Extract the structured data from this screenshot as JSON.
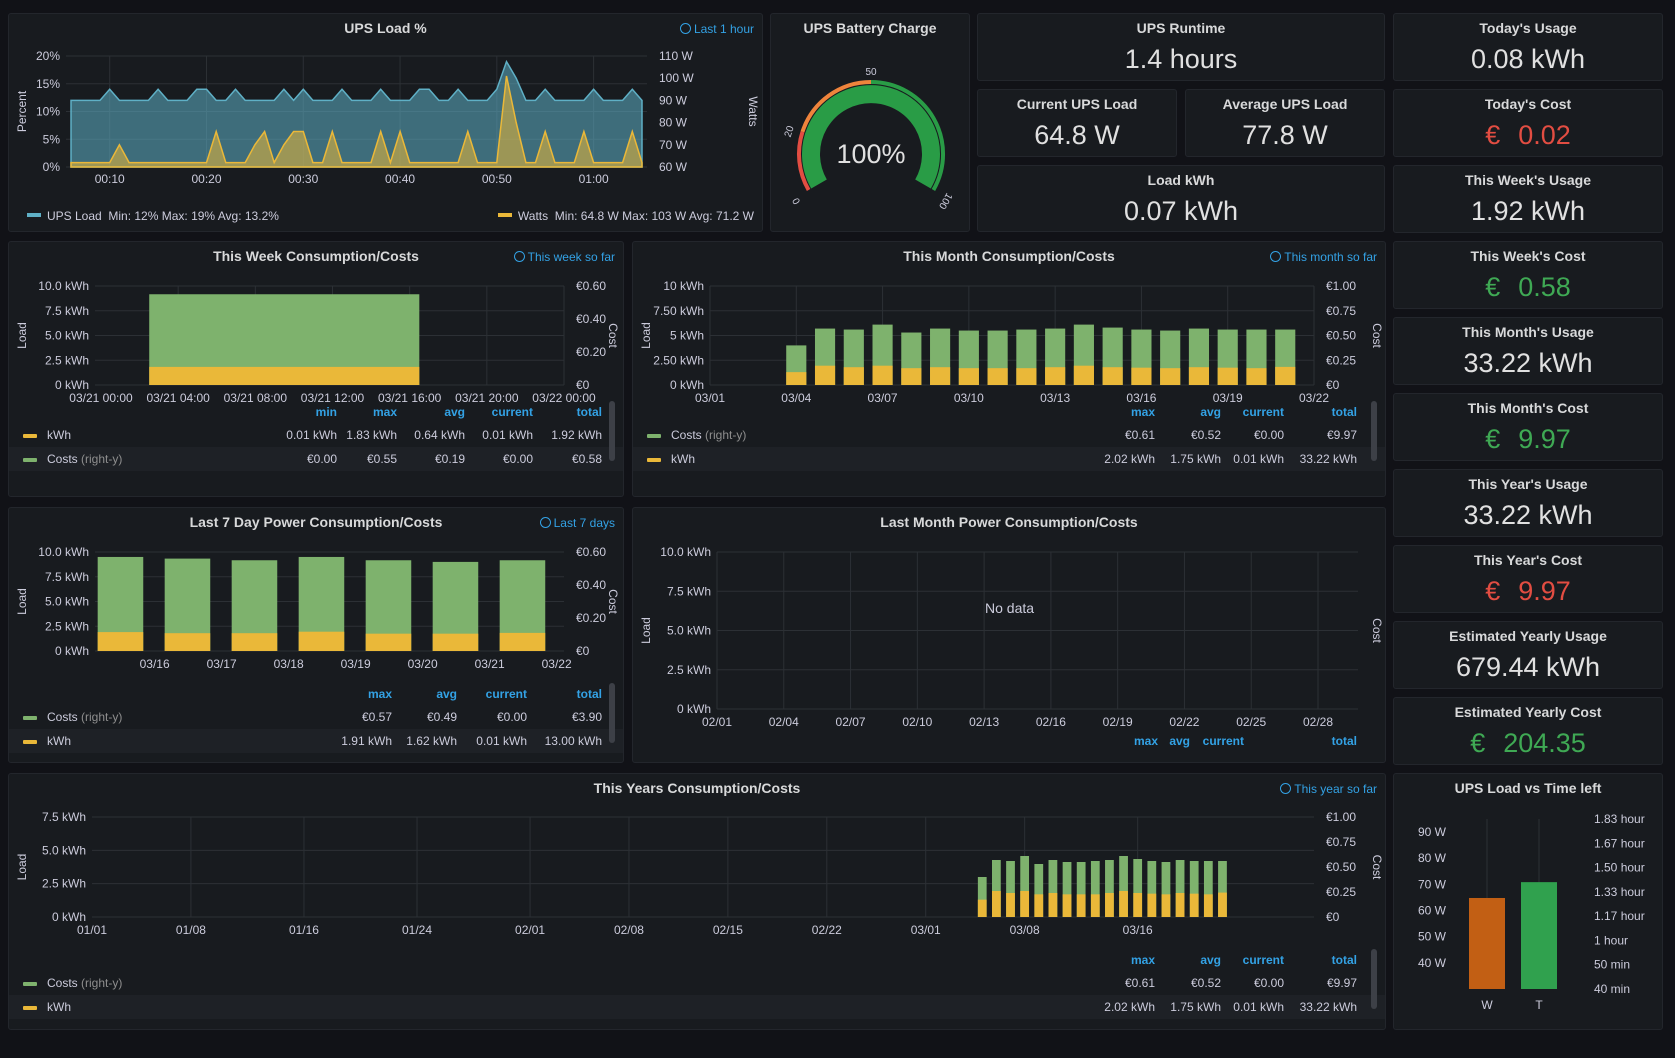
{
  "colors": {
    "green": "#7eb26d",
    "yellow": "#eab839",
    "teal": "#5fb0c6",
    "gaugeGreen": "#299c46",
    "orange": "#c25f14",
    "barGreen": "#30a14e",
    "accent": "#33a2e5",
    "statGreen": "#3fa954",
    "statRed": "#e24d42"
  },
  "icons": {
    "time_range": "clock-icon"
  },
  "ups_load": {
    "title": "UPS Load %",
    "time_range": "Last 1 hour",
    "y_left_label": "Percent",
    "y_right_label": "Watts",
    "legend_load": "UPS Load",
    "legend_load_stats": "Min: 12%   Max: 19%   Avg: 13.2%",
    "legend_watts": "Watts",
    "legend_watts_stats": "Min: 64.8 W   Max: 103 W   Avg: 71.2 W"
  },
  "battery": {
    "title": "UPS Battery Charge",
    "value": "100%",
    "ticks": [
      "0",
      "20",
      "50",
      "100"
    ]
  },
  "stats": {
    "runtime": {
      "title": "UPS Runtime",
      "value": "1.4 hours"
    },
    "current_load": {
      "title": "Current UPS Load",
      "value": "64.8 W"
    },
    "avg_load": {
      "title": "Average UPS Load",
      "value": "77.8 W"
    },
    "load_kwh": {
      "title": "Load kWh",
      "value": "0.07 kWh"
    },
    "today_usage": {
      "title": "Today's Usage",
      "value": "0.08 kWh"
    },
    "today_cost": {
      "title": "Today's Cost",
      "currency": "€",
      "value": "0.02"
    },
    "week_usage": {
      "title": "This Week's Usage",
      "value": "1.92 kWh"
    },
    "week_cost": {
      "title": "This Week's Cost",
      "currency": "€",
      "value": "0.58"
    },
    "month_usage": {
      "title": "This Month's Usage",
      "value": "33.22 kWh"
    },
    "month_cost": {
      "title": "This Month's Cost",
      "currency": "€",
      "value": "9.97"
    },
    "year_usage": {
      "title": "This Year's Usage",
      "value": "33.22 kWh"
    },
    "year_cost": {
      "title": "This Year's Cost",
      "currency": "€",
      "value": "9.97"
    },
    "est_year_usage": {
      "title": "Estimated Yearly Usage",
      "value": "679.44 kWh"
    },
    "est_year_cost": {
      "title": "Estimated Yearly Cost",
      "currency": "€",
      "value": "204.35"
    }
  },
  "week": {
    "title": "This Week Consumption/Costs",
    "time_range": "This week so far",
    "y_left_label": "Load",
    "y_right_label": "Cost",
    "headers": [
      "min",
      "max",
      "avg",
      "current",
      "total"
    ],
    "rows": [
      {
        "name": "kWh",
        "sub": "",
        "color": "#eab839",
        "values": [
          "0.01 kWh",
          "1.83 kWh",
          "0.64 kWh",
          "0.01 kWh",
          "1.92 kWh"
        ]
      },
      {
        "name": "Costs",
        "sub": "(right-y)",
        "color": "#7eb26d",
        "values": [
          "€0.00",
          "€0.55",
          "€0.19",
          "€0.00",
          "€0.58"
        ]
      }
    ]
  },
  "month": {
    "title": "This Month Consumption/Costs",
    "time_range": "This month so far",
    "y_left_label": "Load",
    "y_right_label": "Cost",
    "headers": [
      "max",
      "avg",
      "current",
      "total"
    ],
    "rows": [
      {
        "name": "Costs",
        "sub": "(right-y)",
        "color": "#7eb26d",
        "values": [
          "€0.61",
          "€0.52",
          "€0.00",
          "€9.97"
        ]
      },
      {
        "name": "kWh",
        "sub": "",
        "color": "#eab839",
        "values": [
          "2.02 kWh",
          "1.75 kWh",
          "0.01 kWh",
          "33.22 kWh"
        ]
      }
    ]
  },
  "last7": {
    "title": "Last 7 Day Power Consumption/Costs",
    "time_range": "Last 7 days",
    "y_left_label": "Load",
    "y_right_label": "Cost",
    "headers": [
      "max",
      "avg",
      "current",
      "total"
    ],
    "rows": [
      {
        "name": "Costs",
        "sub": "(right-y)",
        "color": "#7eb26d",
        "values": [
          "€0.57",
          "€0.49",
          "€0.00",
          "€3.90"
        ]
      },
      {
        "name": "kWh",
        "sub": "",
        "color": "#eab839",
        "values": [
          "1.91 kWh",
          "1.62 kWh",
          "0.01 kWh",
          "13.00 kWh"
        ]
      }
    ]
  },
  "lastmonth": {
    "title": "Last Month Power Consumption/Costs",
    "no_data": "No data",
    "y_left_label": "Load",
    "y_right_label": "Cost",
    "headers": [
      "max",
      "avg",
      "current",
      "total"
    ]
  },
  "year": {
    "title": "This Years Consumption/Costs",
    "time_range": "This year so far",
    "y_left_label": "Load",
    "y_right_label": "Cost",
    "headers": [
      "max",
      "avg",
      "current",
      "total"
    ],
    "rows": [
      {
        "name": "Costs",
        "sub": "(right-y)",
        "color": "#7eb26d",
        "values": [
          "€0.61",
          "€0.52",
          "€0.00",
          "€9.97"
        ]
      },
      {
        "name": "kWh",
        "sub": "",
        "color": "#eab839",
        "values": [
          "2.02 kWh",
          "1.75 kWh",
          "0.01 kWh",
          "33.22 kWh"
        ]
      }
    ]
  },
  "loadtime": {
    "title": "UPS Load vs Time left"
  },
  "chart_data": [
    {
      "id": "ups_load",
      "type": "area",
      "x": [
        "00:06",
        "00:07",
        "00:08",
        "00:09",
        "00:10",
        "00:11",
        "00:12",
        "00:13",
        "00:14",
        "00:15",
        "00:16",
        "00:17",
        "00:18",
        "00:19",
        "00:20",
        "00:21",
        "00:22",
        "00:23",
        "00:24",
        "00:25",
        "00:26",
        "00:27",
        "00:28",
        "00:29",
        "00:30",
        "00:31",
        "00:32",
        "00:33",
        "00:34",
        "00:35",
        "00:36",
        "00:37",
        "00:38",
        "00:39",
        "00:40",
        "00:41",
        "00:42",
        "00:43",
        "00:44",
        "00:45",
        "00:46",
        "00:47",
        "00:48",
        "00:49",
        "00:50",
        "00:51",
        "00:52",
        "00:53",
        "00:54",
        "00:55",
        "00:56",
        "00:57",
        "00:58",
        "00:59",
        "01:00",
        "01:01",
        "01:02",
        "01:03",
        "01:04",
        "01:05"
      ],
      "xticks": [
        "00:10",
        "00:20",
        "00:30",
        "00:40",
        "00:50",
        "01:00"
      ],
      "series": [
        {
          "name": "UPS Load",
          "axis": "left",
          "values": [
            12,
            12,
            12,
            12,
            14,
            12,
            12,
            12,
            12,
            14,
            12,
            12,
            12,
            14,
            14,
            12,
            12,
            14,
            12,
            12,
            12,
            12,
            14,
            12,
            14,
            12,
            12,
            12,
            14,
            12,
            12,
            12,
            14,
            12,
            12,
            12,
            14,
            14,
            12,
            12,
            14,
            12,
            12,
            12,
            14,
            19,
            16,
            12,
            12,
            14,
            12,
            12,
            12,
            12,
            14,
            12,
            12,
            12,
            14,
            12
          ]
        },
        {
          "name": "Watts",
          "axis": "right",
          "values": [
            62,
            62,
            62,
            62,
            62,
            70,
            62,
            62,
            62,
            62,
            62,
            62,
            62,
            62,
            62,
            76,
            62,
            62,
            62,
            70,
            76,
            62,
            70,
            76,
            76,
            62,
            62,
            76,
            62,
            62,
            62,
            62,
            76,
            62,
            76,
            62,
            62,
            62,
            62,
            62,
            62,
            76,
            62,
            62,
            62,
            101,
            80,
            62,
            62,
            76,
            62,
            62,
            62,
            76,
            62,
            62,
            62,
            62,
            76,
            62
          ]
        }
      ],
      "ylim_left": [
        0,
        20
      ],
      "yticks_left": [
        "0%",
        "5%",
        "10%",
        "15%",
        "20%"
      ],
      "ylim_right": [
        60,
        110
      ],
      "yticks_right": [
        "60 W",
        "70 W",
        "80 W",
        "90 W",
        "100 W",
        "110 W"
      ]
    },
    {
      "id": "battery",
      "type": "gauge",
      "value": 100,
      "range": [
        0,
        100
      ]
    },
    {
      "id": "week",
      "type": "bar",
      "xticks": [
        "03/21 00:00",
        "03/21 04:00",
        "03/21 08:00",
        "03/21 12:00",
        "03/21 16:00",
        "03/21 20:00",
        "03/22 00:00"
      ],
      "bars": [
        {
          "from_h": 2.5,
          "to_h": 16.5,
          "kWh": 1.83,
          "cost": 0.55
        }
      ],
      "x_range_h": [
        0,
        24
      ],
      "ylim_left": [
        0,
        10
      ],
      "yticks_left": [
        "0 kWh",
        "2.5 kWh",
        "5.0 kWh",
        "7.5 kWh",
        "10.0 kWh"
      ],
      "ylim_right": [
        0,
        0.6
      ],
      "yticks_right": [
        "€0",
        "€0.20",
        "€0.40",
        "€0.60"
      ]
    },
    {
      "id": "month",
      "type": "bar",
      "categories": [
        "03/01",
        "03/02",
        "03/03",
        "03/04",
        "03/05",
        "03/06",
        "03/07",
        "03/08",
        "03/09",
        "03/10",
        "03/11",
        "03/12",
        "03/13",
        "03/14",
        "03/15",
        "03/16",
        "03/17",
        "03/18",
        "03/19",
        "03/20",
        "03/21",
        "03/22"
      ],
      "xticks": [
        "03/01",
        "03/04",
        "03/07",
        "03/10",
        "03/13",
        "03/16",
        "03/19",
        "03/22"
      ],
      "series": [
        {
          "name": "kWh",
          "values": [
            0,
            0,
            0,
            1.3,
            1.95,
            1.8,
            1.95,
            1.7,
            1.8,
            1.7,
            1.7,
            1.7,
            1.8,
            1.95,
            1.8,
            1.75,
            1.7,
            1.8,
            1.75,
            1.7,
            1.83,
            0
          ]
        },
        {
          "name": "Costs",
          "values": [
            0,
            0,
            0,
            0.4,
            0.57,
            0.56,
            0.61,
            0.53,
            0.57,
            0.55,
            0.55,
            0.56,
            0.57,
            0.61,
            0.58,
            0.56,
            0.55,
            0.57,
            0.56,
            0.56,
            0.56,
            0
          ]
        }
      ],
      "ylim_left": [
        0,
        10
      ],
      "yticks_left": [
        "0 kWh",
        "2.50 kWh",
        "5 kWh",
        "7.50 kWh",
        "10 kWh"
      ],
      "ylim_right": [
        0,
        1
      ],
      "yticks_right": [
        "€0",
        "€0.25",
        "€0.50",
        "€0.75",
        "€1.00"
      ]
    },
    {
      "id": "last7",
      "type": "bar",
      "categories": [
        "03/15",
        "03/16",
        "03/17",
        "03/18",
        "03/19",
        "03/20",
        "03/21"
      ],
      "xticks": [
        "03/16",
        "03/17",
        "03/18",
        "03/19",
        "03/20",
        "03/21",
        "03/22"
      ],
      "series": [
        {
          "name": "kWh",
          "values": [
            1.91,
            1.8,
            1.8,
            1.95,
            1.75,
            1.75,
            1.83
          ]
        },
        {
          "name": "Costs",
          "values": [
            0.57,
            0.56,
            0.55,
            0.57,
            0.55,
            0.54,
            0.55
          ]
        }
      ],
      "ylim_left": [
        0,
        10
      ],
      "yticks_left": [
        "0 kWh",
        "2.5 kWh",
        "5.0 kWh",
        "7.5 kWh",
        "10.0 kWh"
      ],
      "ylim_right": [
        0,
        0.6
      ],
      "yticks_right": [
        "€0",
        "€0.20",
        "€0.40",
        "€0.60"
      ]
    },
    {
      "id": "lastmonth",
      "type": "bar",
      "xticks": [
        "02/01",
        "02/04",
        "02/07",
        "02/10",
        "02/13",
        "02/16",
        "02/19",
        "02/22",
        "02/25",
        "02/28"
      ],
      "ylim_left": [
        0,
        10
      ],
      "yticks_left": [
        "0 kWh",
        "2.5 kWh",
        "5.0 kWh",
        "7.5 kWh",
        "10.0 kWh"
      ]
    },
    {
      "id": "year",
      "type": "bar",
      "x_range_days": [
        0,
        84
      ],
      "xticks": [
        "01/01",
        "01/08",
        "01/16",
        "01/24",
        "02/01",
        "02/08",
        "02/15",
        "02/22",
        "03/01",
        "03/08",
        "03/16"
      ],
      "xtick_days": [
        0,
        7,
        15,
        23,
        31,
        38,
        45,
        52,
        59,
        66,
        74
      ],
      "bar_start_day": 62,
      "series": [
        {
          "name": "kWh",
          "values": [
            1.3,
            1.95,
            1.8,
            1.95,
            1.7,
            1.8,
            1.7,
            1.7,
            1.7,
            1.8,
            1.95,
            1.8,
            1.75,
            1.7,
            1.8,
            1.75,
            1.7,
            1.83
          ]
        },
        {
          "name": "Costs",
          "values": [
            0.4,
            0.57,
            0.56,
            0.61,
            0.53,
            0.57,
            0.55,
            0.55,
            0.56,
            0.57,
            0.61,
            0.58,
            0.56,
            0.55,
            0.57,
            0.56,
            0.56,
            0.56
          ]
        }
      ],
      "ylim_left": [
        0,
        7.5
      ],
      "yticks_left": [
        "0 kWh",
        "2.5 kWh",
        "5.0 kWh",
        "7.5 kWh"
      ],
      "ylim_right": [
        0,
        1
      ],
      "yticks_right": [
        "€0",
        "€0.25",
        "€0.50",
        "€0.75",
        "€1.00"
      ]
    },
    {
      "id": "loadtime",
      "type": "bar",
      "categories": [
        "W",
        "T"
      ],
      "series": [
        {
          "name": "W",
          "axis": "left",
          "value": 64.8
        },
        {
          "name": "T",
          "axis": "right",
          "value": 84
        }
      ],
      "ylim_left": [
        30,
        95
      ],
      "yticks_left": [
        "40 W",
        "50 W",
        "60 W",
        "70 W",
        "80 W",
        "90 W"
      ],
      "ylim_right_min": [
        40,
        110
      ],
      "yticks_right": [
        "40 min",
        "50 min",
        "1 hour",
        "1.17 hour",
        "1.33 hour",
        "1.50 hour",
        "1.67 hour",
        "1.83 hour"
      ]
    }
  ]
}
